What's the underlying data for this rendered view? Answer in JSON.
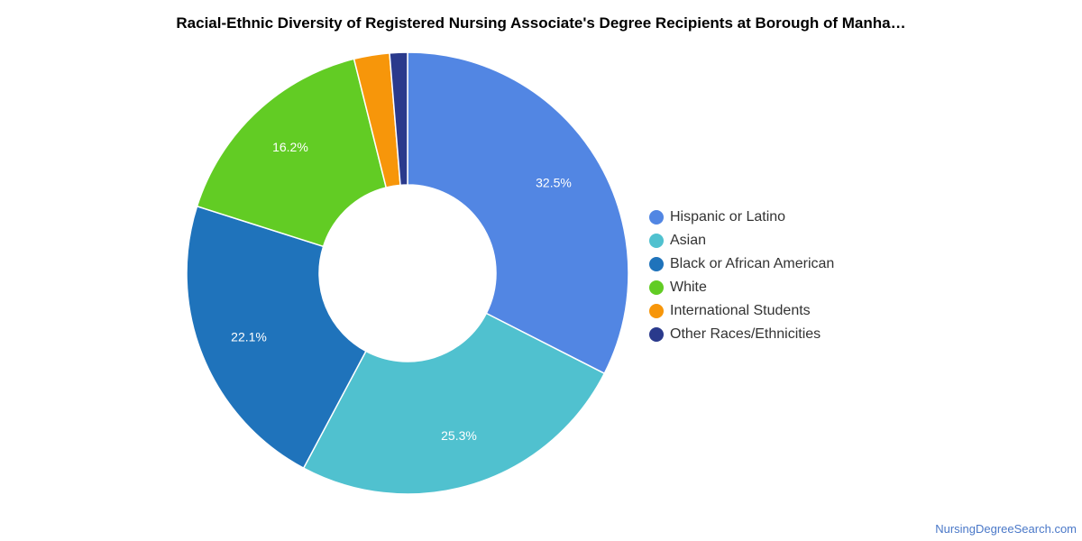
{
  "header": {
    "title": "Racial-Ethnic Diversity of Registered Nursing Associate's Degree Recipients at Borough of Manha…"
  },
  "footer": {
    "source": "NursingDegreeSearch.com"
  },
  "chart_data": {
    "type": "pie",
    "variant": "donut",
    "title": "Racial-Ethnic Diversity of Registered Nursing Associate's Degree Recipients at Borough of Manha…",
    "legend_position": "right",
    "categories": [
      "Hispanic or Latino",
      "Asian",
      "Black or African American",
      "White",
      "International Students",
      "Other Races/Ethnicities"
    ],
    "values": [
      32.5,
      25.3,
      22.1,
      16.2,
      2.6,
      1.3
    ],
    "data_labels": [
      "32.5%",
      "25.3%",
      "22.1%",
      "16.2%",
      "",
      ""
    ],
    "colors": [
      "#5286e3",
      "#50c1cf",
      "#1f73bb",
      "#62cc24",
      "#f7960a",
      "#2a3a8c"
    ]
  }
}
